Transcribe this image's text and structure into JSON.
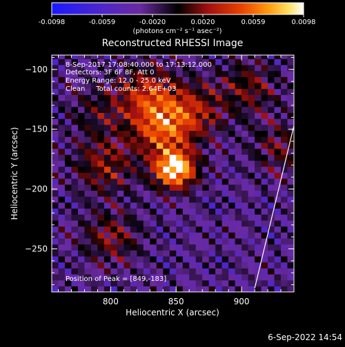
{
  "chart_data": {
    "type": "heatmap",
    "title": "Reconstructed RHESSI Image",
    "xlabel": "Heliocentric X (arcsec)",
    "ylabel": "Heliocentric Y (arcsec)",
    "xlim": [
      755,
      940
    ],
    "ylim": [
      -286,
      -88
    ],
    "x_ticks": [
      800,
      850,
      900
    ],
    "y_ticks": [
      -100,
      -150,
      -200,
      -250
    ],
    "colorbar": {
      "range": [
        -0.0098,
        0.0098
      ],
      "ticks": [
        "-0.0098",
        "-0.0059",
        "-0.0020",
        "0.0020",
        "0.0059",
        "0.0098"
      ],
      "unit_label": "(photons cm⁻² s⁻¹ asec⁻²)",
      "colors": [
        "#2020ff",
        "#5020c0",
        "#7030a0",
        "#000000",
        "#901010",
        "#e03000",
        "#ff8800",
        "#ffdd44",
        "#ffffff"
      ]
    },
    "annotations": [
      "8-Sep-2017 17:08:40.000 to 17:13:12.000",
      "Detectors: 3F 6F 8F, Att 0",
      "Energy Range: 12.0 - 25.0 keV",
      "Clean     Total counts: 2.64E+03"
    ],
    "peak": {
      "label": "Position of Peak = [849,-183]",
      "x": 849,
      "y": -183
    },
    "sources": [
      {
        "x": 849,
        "y": -183,
        "level": 1.0
      },
      {
        "x": 838,
        "y": -150,
        "level": 0.55
      },
      {
        "x": 828,
        "y": -120,
        "level": 0.45
      },
      {
        "x": 862,
        "y": -135,
        "level": 0.4
      },
      {
        "x": 795,
        "y": -180,
        "level": 0.35
      },
      {
        "x": 800,
        "y": -240,
        "level": 0.3
      },
      {
        "x": 905,
        "y": -115,
        "level": 0.3
      },
      {
        "x": 930,
        "y": -165,
        "level": 0.25
      },
      {
        "x": 790,
        "y": -135,
        "level": 0.2
      }
    ],
    "limb_line": [
      [
        910,
        -283
      ],
      [
        940,
        -147
      ]
    ]
  },
  "footer": {
    "date": "6-Sep-2022 14:54"
  }
}
